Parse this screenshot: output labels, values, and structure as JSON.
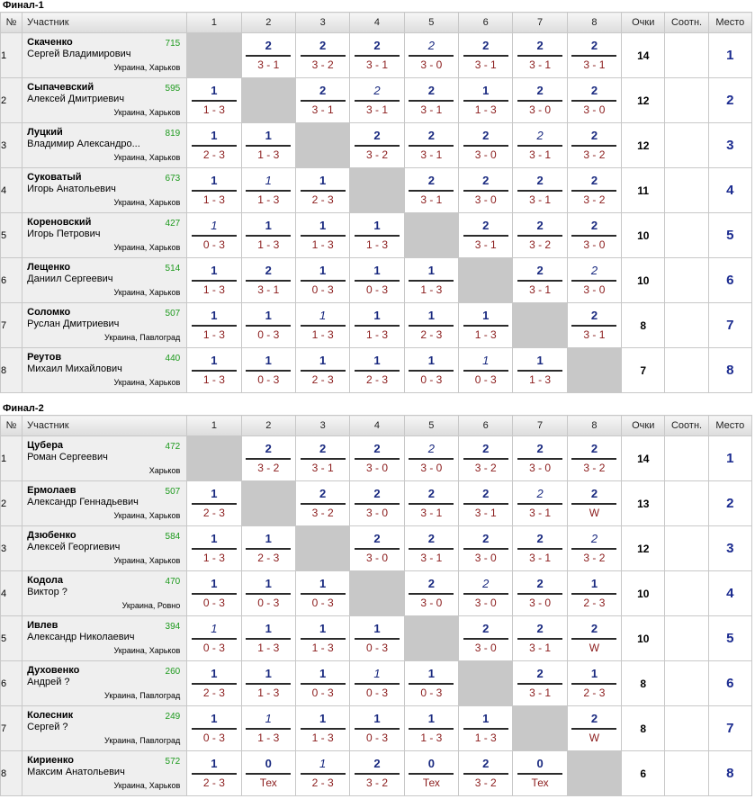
{
  "headers": {
    "num": "№",
    "player": "Участник",
    "cols": [
      "1",
      "2",
      "3",
      "4",
      "5",
      "6",
      "7",
      "8"
    ],
    "points": "Очки",
    "ratio": "Соотн.",
    "place": "Место"
  },
  "sections": [
    {
      "title": "Финал-1",
      "rows": [
        {
          "num": "1",
          "last": "Скаченко",
          "first": "Сергей Владимирович",
          "rating": "715",
          "geo": "Украина, Харьков",
          "points": "14",
          "ratio": "",
          "place": "1",
          "results": [
            null,
            [
              "2",
              "3 - 1"
            ],
            [
              "2",
              "3 - 2"
            ],
            [
              "2",
              "3 - 1"
            ],
            [
              "2",
              "3 - 0",
              1
            ],
            [
              "2",
              "3 - 1"
            ],
            [
              "2",
              "3 - 1"
            ],
            [
              "2",
              "3 - 1"
            ]
          ]
        },
        {
          "num": "2",
          "last": "Сыпачевский",
          "first": "Алексей Дмитриевич",
          "rating": "595",
          "geo": "Украина, Харьков",
          "points": "12",
          "ratio": "",
          "place": "2",
          "results": [
            [
              "1",
              "1 - 3"
            ],
            null,
            [
              "2",
              "3 - 1"
            ],
            [
              "2",
              "3 - 1",
              1
            ],
            [
              "2",
              "3 - 1"
            ],
            [
              "1",
              "1 - 3"
            ],
            [
              "2",
              "3 - 0"
            ],
            [
              "2",
              "3 - 0"
            ]
          ]
        },
        {
          "num": "3",
          "last": "Луцкий",
          "first": "Владимир Александро...",
          "rating": "819",
          "geo": "Украина, Харьков",
          "points": "12",
          "ratio": "",
          "place": "3",
          "results": [
            [
              "1",
              "2 - 3"
            ],
            [
              "1",
              "1 - 3"
            ],
            null,
            [
              "2",
              "3 - 2"
            ],
            [
              "2",
              "3 - 1"
            ],
            [
              "2",
              "3 - 0"
            ],
            [
              "2",
              "3 - 1",
              1
            ],
            [
              "2",
              "3 - 2"
            ]
          ]
        },
        {
          "num": "4",
          "last": "Суковатый",
          "first": "Игорь Анатольевич",
          "rating": "673",
          "geo": "Украина, Харьков",
          "points": "11",
          "ratio": "",
          "place": "4",
          "results": [
            [
              "1",
              "1 - 3"
            ],
            [
              "1",
              "1 - 3",
              1
            ],
            [
              "1",
              "2 - 3"
            ],
            null,
            [
              "2",
              "3 - 1"
            ],
            [
              "2",
              "3 - 0"
            ],
            [
              "2",
              "3 - 1"
            ],
            [
              "2",
              "3 - 2"
            ]
          ]
        },
        {
          "num": "5",
          "last": "Кореновский",
          "first": "Игорь Петрович",
          "rating": "427",
          "geo": "Украина, Харьков",
          "points": "10",
          "ratio": "",
          "place": "5",
          "results": [
            [
              "1",
              "0 - 3",
              1
            ],
            [
              "1",
              "1 - 3"
            ],
            [
              "1",
              "1 - 3"
            ],
            [
              "1",
              "1 - 3"
            ],
            null,
            [
              "2",
              "3 - 1"
            ],
            [
              "2",
              "3 - 2"
            ],
            [
              "2",
              "3 - 0"
            ]
          ]
        },
        {
          "num": "6",
          "last": "Лещенко",
          "first": "Даниил Сергеевич",
          "rating": "514",
          "geo": "Украина, Харьков",
          "points": "10",
          "ratio": "",
          "place": "6",
          "results": [
            [
              "1",
              "1 - 3"
            ],
            [
              "2",
              "3 - 1"
            ],
            [
              "1",
              "0 - 3"
            ],
            [
              "1",
              "0 - 3"
            ],
            [
              "1",
              "1 - 3"
            ],
            null,
            [
              "2",
              "3 - 1"
            ],
            [
              "2",
              "3 - 0",
              1
            ]
          ]
        },
        {
          "num": "7",
          "last": "Соломко",
          "first": "Руслан Дмитриевич",
          "rating": "507",
          "geo": "Украина, Павлоград",
          "points": "8",
          "ratio": "",
          "place": "7",
          "results": [
            [
              "1",
              "1 - 3"
            ],
            [
              "1",
              "0 - 3"
            ],
            [
              "1",
              "1 - 3",
              1
            ],
            [
              "1",
              "1 - 3"
            ],
            [
              "1",
              "2 - 3"
            ],
            [
              "1",
              "1 - 3"
            ],
            null,
            [
              "2",
              "3 - 1"
            ]
          ]
        },
        {
          "num": "8",
          "last": "Реутов",
          "first": "Михаил Михайлович",
          "rating": "440",
          "geo": "Украина, Харьков",
          "points": "7",
          "ratio": "",
          "place": "8",
          "results": [
            [
              "1",
              "1 - 3"
            ],
            [
              "1",
              "0 - 3"
            ],
            [
              "1",
              "2 - 3"
            ],
            [
              "1",
              "2 - 3"
            ],
            [
              "1",
              "0 - 3"
            ],
            [
              "1",
              "0 - 3",
              1
            ],
            [
              "1",
              "1 - 3"
            ],
            null
          ]
        }
      ]
    },
    {
      "title": "Финал-2",
      "rows": [
        {
          "num": "1",
          "last": "Цубера",
          "first": "Роман Сергеевич",
          "rating": "472",
          "geo": "Харьков",
          "points": "14",
          "ratio": "",
          "place": "1",
          "results": [
            null,
            [
              "2",
              "3 - 2"
            ],
            [
              "2",
              "3 - 1"
            ],
            [
              "2",
              "3 - 0"
            ],
            [
              "2",
              "3 - 0",
              1
            ],
            [
              "2",
              "3 - 2"
            ],
            [
              "2",
              "3 - 0"
            ],
            [
              "2",
              "3 - 2"
            ]
          ]
        },
        {
          "num": "2",
          "last": "Ермолаев",
          "first": "Александр Геннадьевич",
          "rating": "507",
          "geo": "Украина, Харьков",
          "points": "13",
          "ratio": "",
          "place": "2",
          "results": [
            [
              "1",
              "2 - 3"
            ],
            null,
            [
              "2",
              "3 - 2"
            ],
            [
              "2",
              "3 - 0"
            ],
            [
              "2",
              "3 - 1"
            ],
            [
              "2",
              "3 - 1"
            ],
            [
              "2",
              "3 - 1",
              1
            ],
            [
              "2",
              "W"
            ]
          ]
        },
        {
          "num": "3",
          "last": "Дзюбенко",
          "first": "Алексей Георгиевич",
          "rating": "584",
          "geo": "Украина, Харьков",
          "points": "12",
          "ratio": "",
          "place": "3",
          "results": [
            [
              "1",
              "1 - 3"
            ],
            [
              "1",
              "2 - 3"
            ],
            null,
            [
              "2",
              "3 - 0"
            ],
            [
              "2",
              "3 - 1"
            ],
            [
              "2",
              "3 - 0"
            ],
            [
              "2",
              "3 - 1"
            ],
            [
              "2",
              "3 - 2",
              1
            ]
          ]
        },
        {
          "num": "4",
          "last": "Кодола",
          "first": "Виктор ?",
          "rating": "470",
          "geo": "Украина, Ровно",
          "points": "10",
          "ratio": "",
          "place": "4",
          "results": [
            [
              "1",
              "0 - 3"
            ],
            [
              "1",
              "0 - 3"
            ],
            [
              "1",
              "0 - 3"
            ],
            null,
            [
              "2",
              "3 - 0"
            ],
            [
              "2",
              "3 - 0",
              1
            ],
            [
              "2",
              "3 - 0"
            ],
            [
              "1",
              "2 - 3"
            ]
          ]
        },
        {
          "num": "5",
          "last": "Ивлев",
          "first": "Александр Николаевич",
          "rating": "394",
          "geo": "Украина, Харьков",
          "points": "10",
          "ratio": "",
          "place": "5",
          "results": [
            [
              "1",
              "0 - 3",
              1
            ],
            [
              "1",
              "1 - 3"
            ],
            [
              "1",
              "1 - 3"
            ],
            [
              "1",
              "0 - 3"
            ],
            null,
            [
              "2",
              "3 - 0"
            ],
            [
              "2",
              "3 - 1"
            ],
            [
              "2",
              "W"
            ]
          ]
        },
        {
          "num": "6",
          "last": "Духовенко",
          "first": "Андрей ?",
          "rating": "260",
          "geo": "Украина, Павлоград",
          "points": "8",
          "ratio": "",
          "place": "6",
          "results": [
            [
              "1",
              "2 - 3"
            ],
            [
              "1",
              "1 - 3"
            ],
            [
              "1",
              "0 - 3"
            ],
            [
              "1",
              "0 - 3",
              1
            ],
            [
              "1",
              "0 - 3"
            ],
            null,
            [
              "2",
              "3 - 1"
            ],
            [
              "1",
              "2 - 3"
            ]
          ]
        },
        {
          "num": "7",
          "last": "Колесник",
          "first": "Сергей ?",
          "rating": "249",
          "geo": "Украина, Павлоград",
          "points": "8",
          "ratio": "",
          "place": "7",
          "results": [
            [
              "1",
              "0 - 3"
            ],
            [
              "1",
              "1 - 3",
              1
            ],
            [
              "1",
              "1 - 3"
            ],
            [
              "1",
              "0 - 3"
            ],
            [
              "1",
              "1 - 3"
            ],
            [
              "1",
              "1 - 3"
            ],
            null,
            [
              "2",
              "W"
            ]
          ]
        },
        {
          "num": "8",
          "last": "Кириенко",
          "first": "Максим Анатольевич",
          "rating": "572",
          "geo": "Украина, Харьков",
          "points": "6",
          "ratio": "",
          "place": "8",
          "results": [
            [
              "1",
              "2 - 3"
            ],
            [
              "0",
              "Тех"
            ],
            [
              "1",
              "2 - 3",
              1
            ],
            [
              "2",
              "3 - 2"
            ],
            [
              "0",
              "Тех"
            ],
            [
              "2",
              "3 - 2"
            ],
            [
              "0",
              "Тех"
            ],
            null
          ]
        }
      ]
    }
  ]
}
